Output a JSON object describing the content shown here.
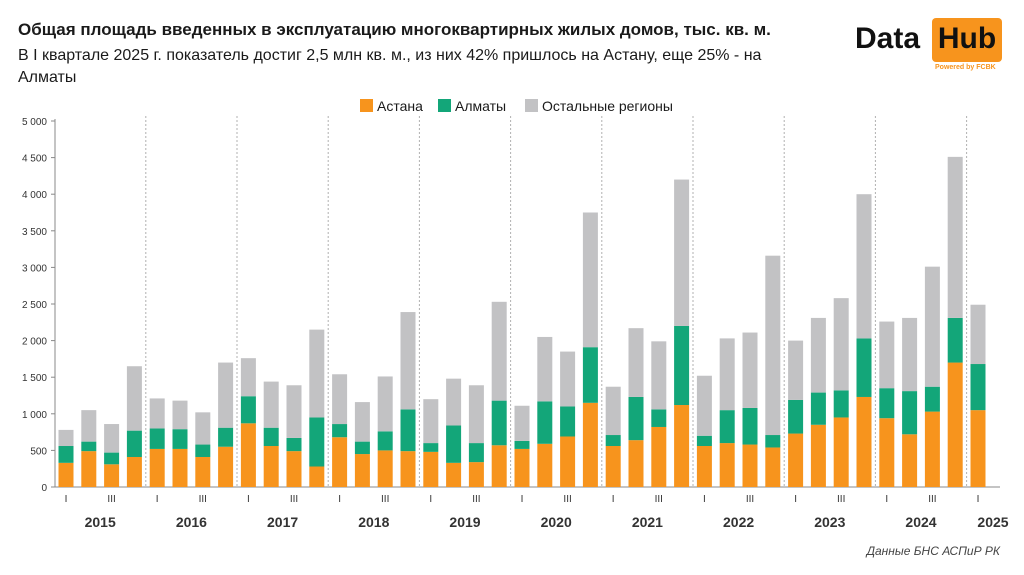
{
  "header": {
    "title": "Общая площадь введенных в эксплуатацию многоквартирных жилых домов, тыс. кв. м.",
    "subtitle": "В I квартале 2025 г. показатель достиг 2,5 млн кв. м., из них 42% пришлось на Астану, еще 25% - на Алматы"
  },
  "logo": {
    "word1": "Data",
    "word2": "Hub",
    "powered": "Powered by FCBK"
  },
  "source": "Данные БНС АСПиР РК",
  "colors": {
    "astana": "#f7941d",
    "almaty": "#13a679",
    "other": "#c2c2c4"
  },
  "chart_data": {
    "type": "bar",
    "stacked": true,
    "title": "Общая площадь введенных в эксплуатацию многоквартирных жилых домов, тыс. кв. м.",
    "ylim": [
      0,
      5000
    ],
    "yticks": [
      "0",
      "500",
      "1 000",
      "1 500",
      "2 000",
      "2 500",
      "3 000",
      "3 500",
      "4 000",
      "4 500",
      "5 000"
    ],
    "ytick_values": [
      0,
      500,
      1000,
      1500,
      2000,
      2500,
      3000,
      3500,
      4000,
      4500,
      5000
    ],
    "legend": [
      "Астана",
      "Алматы",
      "Остальные регионы"
    ],
    "legend_position": "top-center",
    "years": [
      "2015",
      "2016",
      "2017",
      "2018",
      "2019",
      "2020",
      "2021",
      "2022",
      "2023",
      "2024",
      "2025"
    ],
    "quarter_labels": [
      "I",
      "III"
    ],
    "series": [
      {
        "name": "Астана",
        "values": [
          330,
          490,
          310,
          410,
          520,
          520,
          410,
          550,
          870,
          560,
          490,
          280,
          680,
          450,
          500,
          490,
          480,
          330,
          340,
          570,
          520,
          590,
          690,
          1150,
          560,
          640,
          820,
          1120,
          560,
          600,
          580,
          540,
          730,
          850,
          950,
          1230,
          940,
          720,
          1030,
          1700,
          1050
        ]
      },
      {
        "name": "Алматы",
        "values": [
          230,
          130,
          160,
          360,
          280,
          270,
          170,
          260,
          370,
          250,
          180,
          670,
          180,
          170,
          260,
          570,
          120,
          510,
          260,
          610,
          110,
          580,
          410,
          760,
          150,
          590,
          240,
          1080,
          140,
          450,
          500,
          170,
          460,
          440,
          370,
          800,
          410,
          590,
          340,
          610,
          630
        ]
      },
      {
        "name": "Остальные регионы",
        "values": [
          220,
          430,
          390,
          880,
          410,
          390,
          440,
          890,
          520,
          630,
          720,
          1200,
          680,
          540,
          750,
          1330,
          600,
          640,
          790,
          1350,
          480,
          880,
          750,
          1840,
          660,
          940,
          930,
          2000,
          820,
          980,
          1030,
          2450,
          810,
          1020,
          1260,
          1970,
          910,
          1000,
          1640,
          2200,
          810
        ]
      }
    ]
  }
}
